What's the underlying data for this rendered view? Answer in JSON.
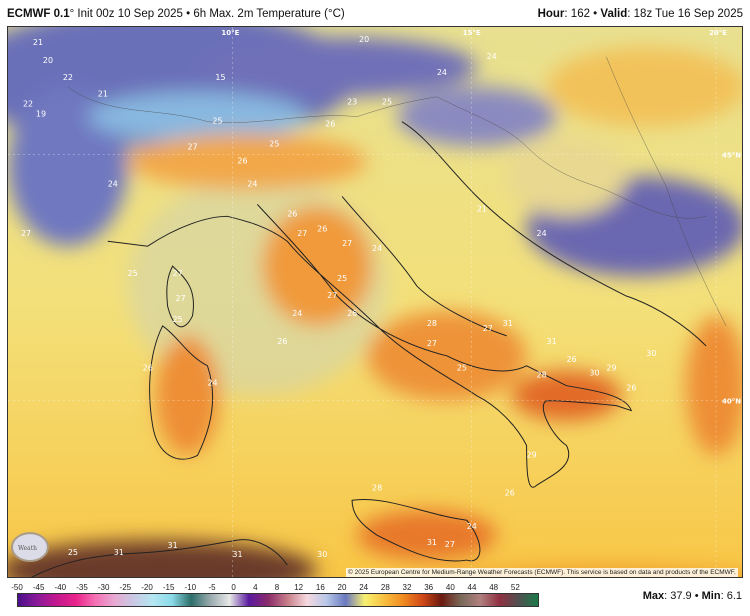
{
  "header": {
    "model": "ECMWF 0.1",
    "init": "° Init 00z 10 Sep 2025 • 6h Max. 2m Temperature (°C)",
    "hour_label": "Hour",
    "hour_value": ": 162 • ",
    "valid_label": "Valid",
    "valid_value": ": 18z Tue 16 Sep 2025"
  },
  "map": {
    "longitude_labels": [
      "10°E",
      "15°E",
      "20°E"
    ],
    "latitude_labels": [
      "45°N",
      "40°N"
    ],
    "temperature_labels": [
      "21",
      "20",
      "22",
      "21",
      "19",
      "22",
      "15",
      "20",
      "24",
      "24",
      "25",
      "26",
      "23",
      "25",
      "27",
      "25",
      "26",
      "24",
      "24",
      "21",
      "24",
      "27",
      "26",
      "27",
      "26",
      "27",
      "24",
      "25",
      "27",
      "26",
      "24",
      "28",
      "27",
      "26",
      "24",
      "27",
      "31",
      "31",
      "26",
      "28",
      "30",
      "30",
      "29",
      "25",
      "26",
      "29",
      "26",
      "24",
      "31",
      "27",
      "28",
      "25",
      "31",
      "31",
      "31",
      "30",
      "25",
      "27",
      "27",
      "26",
      "25"
    ],
    "logo_text": "Weath",
    "colors": {
      "sea": "#f2e27a",
      "land_warm": "#f3a43a",
      "land_hot": "#e0622a",
      "alps": "#6a70b8",
      "north_africa": "#6b3a2c"
    }
  },
  "copyright": "© 2025 European Centre for Medium-Range Weather Forecasts (ECMWF). This service is based on data and products of the ECMWF.",
  "colorbar": {
    "ticks": [
      "-50",
      "-45",
      "-40",
      "-35",
      "-30",
      "-25",
      "-20",
      "-15",
      "-10",
      "-5",
      "0",
      "4",
      "8",
      "12",
      "16",
      "20",
      "24",
      "28",
      "32",
      "36",
      "40",
      "44",
      "48",
      "52"
    ],
    "range": [
      -50,
      52
    ],
    "colors": [
      "#4b0f8a",
      "#8a1a9a",
      "#c2188f",
      "#e8228a",
      "#f570b5",
      "#e8a8d2",
      "#c9c8e4",
      "#b6e6f2",
      "#8adbe8",
      "#2c6e6a",
      "#9aaaae",
      "#e8e8e8",
      "#5a1aa0",
      "#8a2a6a",
      "#c8808a",
      "#f5d8e0",
      "#b8c8e8",
      "#6a78c0",
      "#f8f070",
      "#f8c040",
      "#f08a20",
      "#d04818",
      "#6a1a10",
      "#7a6a5a",
      "#b08080",
      "#903040",
      "#505050",
      "#1a7a4a"
    ]
  },
  "stats": {
    "max_label": "Max",
    "max_value": ": 37.9 • ",
    "min_label": "Min",
    "min_value": ": 6.1"
  }
}
